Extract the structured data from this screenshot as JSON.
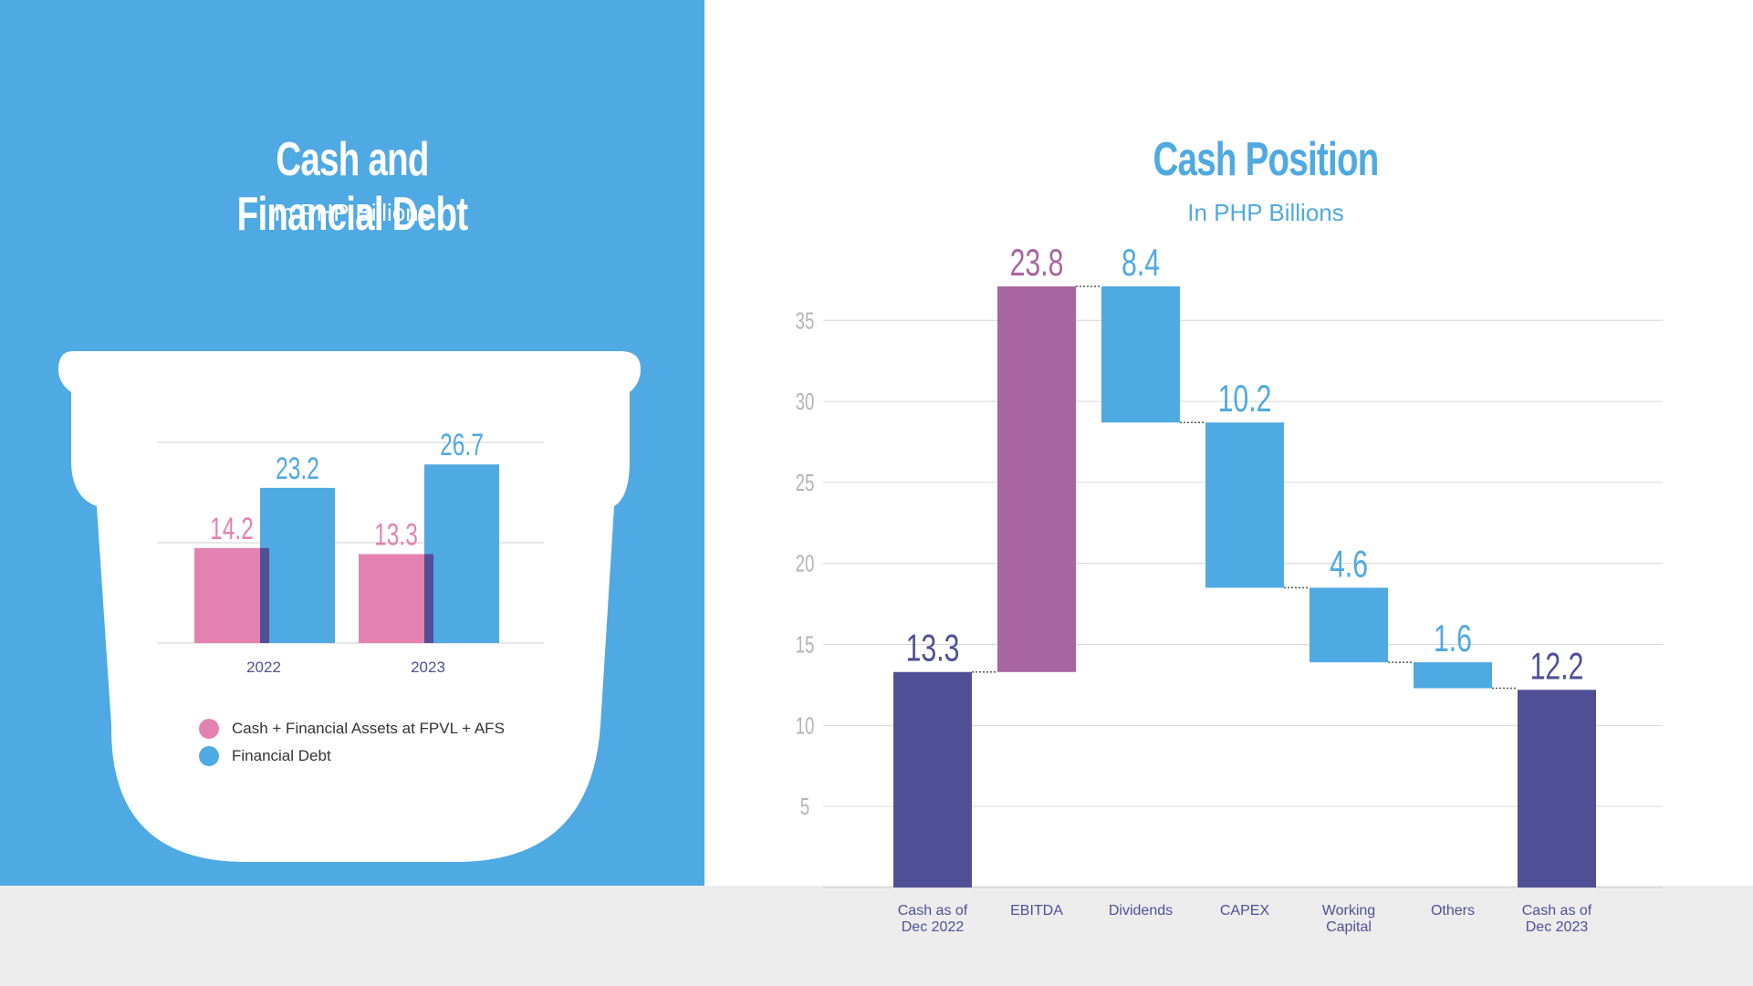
{
  "colors": {
    "blue": "#4fa9e2",
    "pink": "#e382b1",
    "purple": "#a8659f",
    "navy": "#4f5096",
    "grid": "#d6d6d6",
    "footer": "#ececed"
  },
  "left": {
    "title": "Cash and Financial Debt",
    "subtitle": "In PHP Billions",
    "legend": [
      {
        "label": "Cash + Financial Assets at FPVL + AFS",
        "color": "#e382b1"
      },
      {
        "label": "Financial Debt",
        "color": "#4fa9e2"
      }
    ]
  },
  "right": {
    "title": "Cash Position",
    "subtitle": "In PHP Billions"
  },
  "chart_data": [
    {
      "type": "bar",
      "title": "Cash and Financial Debt",
      "subtitle": "In PHP Billions",
      "categories": [
        "2022",
        "2023"
      ],
      "series": [
        {
          "name": "Cash + Financial Assets at FPVL + AFS",
          "values": [
            14.2,
            13.3
          ],
          "color": "#e382b1"
        },
        {
          "name": "Financial Debt",
          "values": [
            23.2,
            26.7
          ],
          "color": "#4fa9e2"
        }
      ],
      "ylim": [
        0,
        30
      ],
      "grid": true,
      "legend": "bottom"
    },
    {
      "type": "waterfall",
      "title": "Cash Position",
      "subtitle": "In PHP Billions",
      "categories": [
        "Cash as of Dec 2022",
        "EBITDA",
        "Dividends",
        "CAPEX",
        "Working Capital",
        "Others",
        "Cash as of Dec 2023"
      ],
      "category_lines": [
        [
          "Cash as of",
          "Dec 2022"
        ],
        [
          "EBITDA"
        ],
        [
          "Dividends"
        ],
        [
          "CAPEX"
        ],
        [
          "Working",
          "Capital"
        ],
        [
          "Others"
        ],
        [
          "Cash as of",
          "Dec 2023"
        ]
      ],
      "steps": [
        {
          "kind": "total",
          "value": 13.3,
          "label": "13.3",
          "color": "#4f5096"
        },
        {
          "kind": "increase",
          "value": 23.8,
          "label": "23.8",
          "color": "#a8659f"
        },
        {
          "kind": "decrease",
          "value": 8.4,
          "label": "8.4",
          "color": "#4fa9e2"
        },
        {
          "kind": "decrease",
          "value": 10.2,
          "label": "10.2",
          "color": "#4fa9e2"
        },
        {
          "kind": "decrease",
          "value": 4.6,
          "label": "4.6",
          "color": "#4fa9e2"
        },
        {
          "kind": "decrease",
          "value": 1.6,
          "label": "1.6",
          "color": "#4fa9e2"
        },
        {
          "kind": "total",
          "value": 12.2,
          "label": "12.2",
          "color": "#4f5096"
        }
      ],
      "yticks": [
        5,
        10,
        15,
        20,
        25,
        30,
        35
      ],
      "ylim": [
        0,
        37.1
      ],
      "grid": true
    }
  ]
}
